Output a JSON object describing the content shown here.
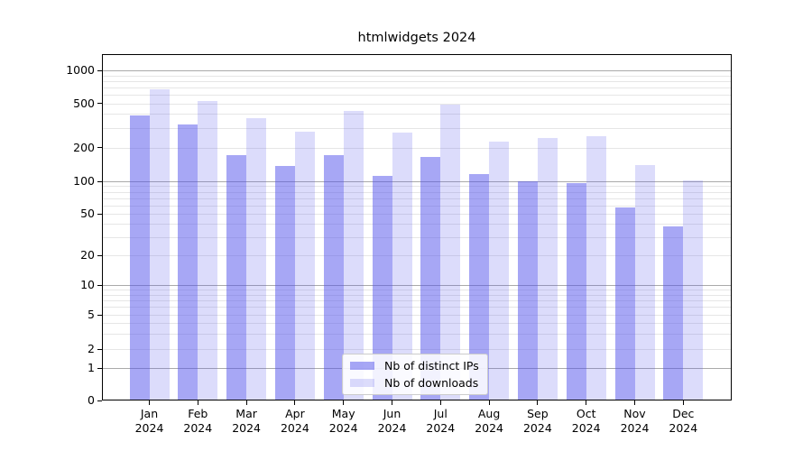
{
  "chart_data": {
    "type": "bar",
    "title": "htmlwidgets 2024",
    "categories": [
      "Jan 2024",
      "Feb 2024",
      "Mar 2024",
      "Apr 2024",
      "May 2024",
      "Jun 2024",
      "Jul 2024",
      "Aug 2024",
      "Sep 2024",
      "Oct 2024",
      "Nov 2024",
      "Dec 2024"
    ],
    "series": [
      {
        "name": "Nb of distinct IPs",
        "color": "#a9a9f2",
        "values": [
          390,
          320,
          172,
          138,
          170,
          112,
          165,
          115,
          100,
          97,
          57,
          38
        ]
      },
      {
        "name": "Nb of downloads",
        "color": "#dcdcf8",
        "values": [
          670,
          520,
          365,
          275,
          430,
          270,
          490,
          225,
          245,
          255,
          140,
          102
        ]
      }
    ],
    "y_axis": {
      "scale": "log",
      "tick_labels": [
        1000,
        500,
        200,
        100,
        50,
        20,
        10,
        5,
        2,
        1,
        0
      ],
      "ylim": [
        0,
        1400
      ]
    },
    "xlabel": "",
    "ylabel": "",
    "grid": true,
    "legend": {
      "position": "inside-bottom-center",
      "entries": [
        "Nb of distinct IPs",
        "Nb of downloads"
      ]
    },
    "colors": {
      "bar_fill_ips": "rgba(80,80,235,0.5)",
      "bar_fill_downloads": "rgba(80,80,235,0.2)",
      "grid_major": "#aaaaaa",
      "grid_minor": "#e6e6e6",
      "axis": "#000000"
    }
  }
}
